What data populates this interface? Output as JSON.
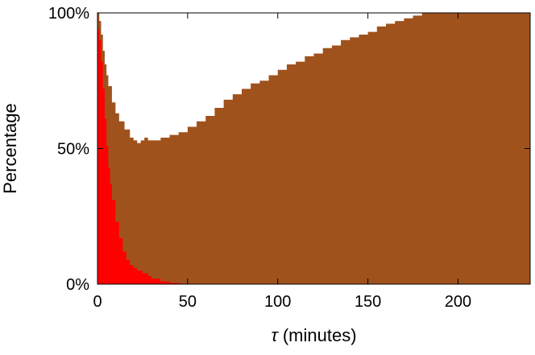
{
  "chart_data": {
    "type": "area",
    "xlabel_symbol": "τ",
    "xlabel_rest": " (minutes)",
    "ylabel": "Percentage",
    "xlim": [
      0,
      240
    ],
    "ylim": [
      0,
      100
    ],
    "x_ticks": [
      0,
      50,
      100,
      150,
      200
    ],
    "y_ticks": [
      0,
      50,
      100
    ],
    "y_tick_labels": [
      "0%",
      "50%",
      "100%"
    ],
    "grid": false,
    "legend": "none",
    "colors": {
      "upper": "#a0521c",
      "lower": "#ff0000",
      "background": "#ffffff"
    },
    "series": [
      {
        "x": [
          0,
          1,
          2,
          3,
          4,
          5,
          6,
          8,
          10,
          12,
          15,
          18,
          20,
          22,
          24,
          26,
          28,
          30,
          35,
          40,
          45,
          50,
          55,
          60,
          65,
          70,
          75,
          80,
          85,
          90,
          95,
          100,
          105,
          110,
          115,
          120,
          125,
          130,
          135,
          140,
          145,
          150,
          155,
          160,
          165,
          170,
          175,
          180,
          185,
          190,
          200,
          210,
          220,
          230,
          240
        ],
        "values": [
          100,
          97,
          92,
          86,
          81,
          77,
          73,
          67,
          63,
          60,
          57,
          54,
          53,
          52,
          53,
          54,
          53,
          53,
          54,
          55,
          56,
          58,
          60,
          62,
          65,
          68,
          70,
          72,
          74,
          75,
          77,
          79,
          81,
          82,
          84,
          85,
          87,
          88,
          90,
          91,
          92,
          93,
          95,
          96,
          97,
          98,
          99,
          100,
          100,
          100,
          100,
          100,
          100,
          100,
          100
        ]
      },
      {
        "x": [
          0,
          1,
          2,
          3,
          4,
          5,
          6,
          7,
          8,
          10,
          12,
          14,
          16,
          18,
          20,
          22,
          25,
          28,
          30,
          35,
          40,
          45,
          50
        ],
        "values": [
          94,
          90,
          82,
          72,
          61,
          51,
          43,
          37,
          31,
          23,
          17,
          12,
          9,
          7,
          6,
          5,
          4,
          3,
          2,
          1,
          0.5,
          0.2,
          0
        ]
      }
    ]
  }
}
